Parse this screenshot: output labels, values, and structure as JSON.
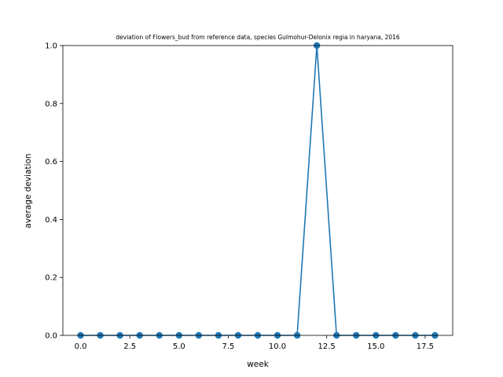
{
  "chart_data": {
    "type": "line",
    "title": "deviation of Flowers_bud from reference data, species Gulmohur-Delonix regia in haryana, 2016",
    "xlabel": "week",
    "ylabel": "average deviation",
    "xlim": [
      -0.9,
      18.9
    ],
    "ylim": [
      0,
      1.0
    ],
    "xticks": [
      0.0,
      2.5,
      5.0,
      7.5,
      10.0,
      12.5,
      15.0,
      17.5
    ],
    "xtick_labels": [
      "0.0",
      "2.5",
      "5.0",
      "7.5",
      "10.0",
      "12.5",
      "15.0",
      "17.5"
    ],
    "yticks": [
      0.0,
      0.2,
      0.4,
      0.6,
      0.8,
      1.0
    ],
    "ytick_labels": [
      "0.0",
      "0.2",
      "0.4",
      "0.6",
      "0.8",
      "1.0"
    ],
    "grid": false,
    "series": [
      {
        "color": "#1f77b4",
        "marker": "circle",
        "x": [
          0,
          1,
          2,
          3,
          4,
          5,
          6,
          7,
          8,
          9,
          10,
          11,
          12,
          13,
          14,
          15,
          16,
          17,
          18
        ],
        "y": [
          0,
          0,
          0,
          0,
          0,
          0,
          0,
          0,
          0,
          0,
          0,
          0,
          1,
          0,
          0,
          0,
          0,
          0,
          0
        ]
      }
    ]
  }
}
